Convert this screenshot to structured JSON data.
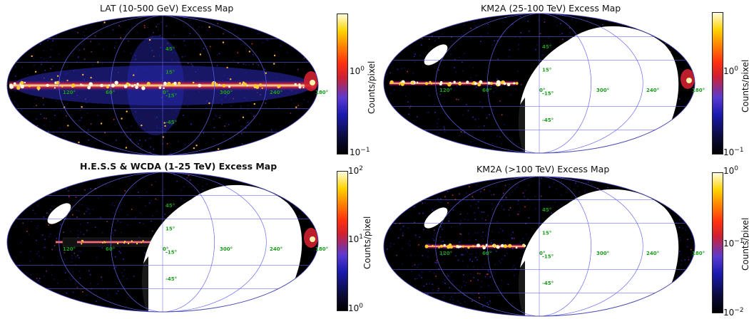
{
  "panels": [
    {
      "title": "LAT (10-500 GeV) Excess Map",
      "colorbar": {
        "label": "Counts/pixel",
        "ticks": [
          {
            "base": "10",
            "exp": "0"
          },
          {
            "base": "10",
            "exp": "−1"
          }
        ]
      },
      "grid_labels": {
        "lat": [
          "45°",
          "15°",
          "-15°",
          "-45°"
        ],
        "lon": [
          "120°",
          "60°",
          "0°",
          "300°",
          "240°",
          "180°"
        ]
      }
    },
    {
      "title": "KM2A (25-100 TeV) Excess Map",
      "colorbar": {
        "label": "Counts/pixel",
        "ticks": [
          {
            "base": "10",
            "exp": "0"
          },
          {
            "base": "10",
            "exp": "−1"
          }
        ]
      },
      "grid_labels": {
        "lat": [
          "45°",
          "15°",
          "-15°",
          "-45°"
        ],
        "lon": [
          "120°",
          "60°",
          "0°",
          "300°",
          "240°",
          "180°"
        ]
      }
    },
    {
      "title": "H.E.S.S & WCDA (1-25 TeV) Excess Map",
      "colorbar": {
        "label": "Counts/pixel",
        "ticks": [
          {
            "base": "10",
            "exp": "2"
          },
          {
            "base": "10",
            "exp": "1"
          },
          {
            "base": "10",
            "exp": "0"
          }
        ]
      },
      "grid_labels": {
        "lat": [
          "45°",
          "15°",
          "-15°",
          "-45°"
        ],
        "lon": [
          "120°",
          "60°",
          "0°",
          "300°",
          "240°",
          "180°"
        ]
      }
    },
    {
      "title": "KM2A (>100 TeV) Excess Map",
      "colorbar": {
        "label": "Counts/pixel",
        "ticks": [
          {
            "base": "10",
            "exp": "0"
          },
          {
            "base": "10",
            "exp": "−1"
          },
          {
            "base": "10",
            "exp": "−2"
          }
        ]
      },
      "grid_labels": {
        "lat": [
          "45°",
          "15°",
          "-15°",
          "-45°"
        ],
        "lon": [
          "120°",
          "60°",
          "0°",
          "300°",
          "240°",
          "180°"
        ]
      }
    }
  ],
  "colors": {
    "grid": "#6666ee",
    "grid_label": "#1c9a1c",
    "background": "#000000",
    "unobserved": "#ffffff"
  }
}
